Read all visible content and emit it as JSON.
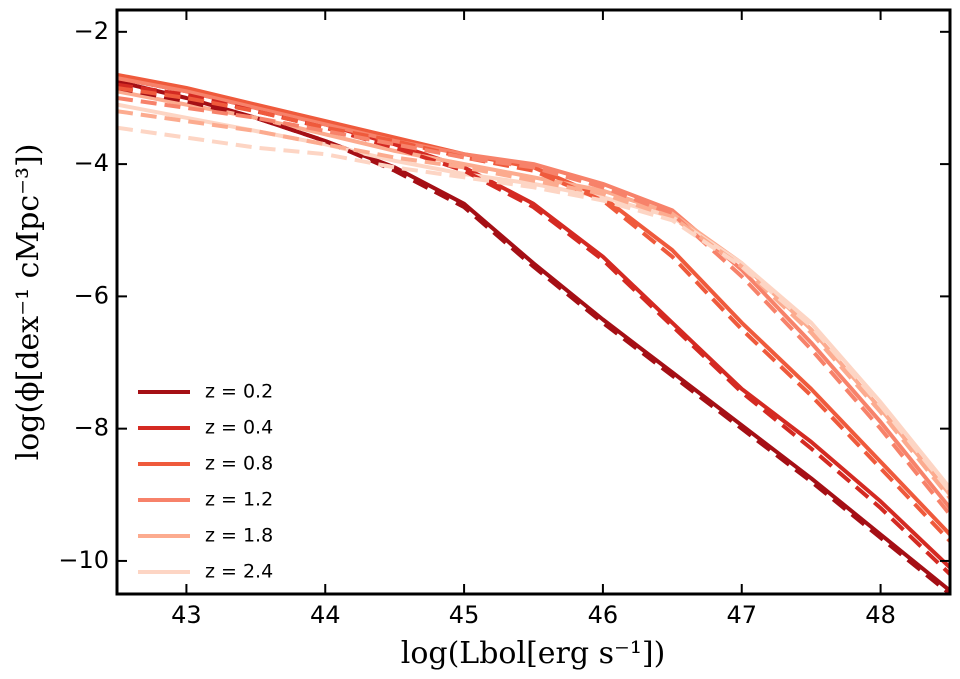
{
  "chart_data": {
    "type": "line",
    "xlabel": "log(Lbol[erg s⁻¹])",
    "ylabel": "log(ϕ[dex⁻¹ cMpc⁻³])",
    "x": [
      42.5,
      43,
      43.5,
      44,
      44.5,
      45,
      45.5,
      46,
      46.5,
      47,
      47.5,
      48,
      48.5
    ],
    "xlim": [
      42.5,
      48.5
    ],
    "xticks": [
      43,
      44,
      45,
      46,
      47,
      48
    ],
    "ylim": [
      -10.5,
      -1.67
    ],
    "yticks": [
      {
        "value": -2,
        "label": "−2"
      },
      {
        "value": -4,
        "label": "−4"
      },
      {
        "value": -6,
        "label": "−6"
      },
      {
        "value": -8,
        "label": "−8"
      },
      {
        "value": -10,
        "label": "−10"
      }
    ],
    "legend": "lower left",
    "series": [
      {
        "name": "z = 0.2",
        "color": "#a50f15",
        "values": [
          -2.75,
          -3.0,
          -3.3,
          -3.65,
          -4.05,
          -4.6,
          -5.5,
          -6.35,
          -7.15,
          -7.95,
          -8.75,
          -9.6,
          -10.45
        ]
      },
      {
        "name": "z = 0.4",
        "color": "#d42a22",
        "values": [
          -2.7,
          -2.9,
          -3.15,
          -3.4,
          -3.7,
          -4.05,
          -4.6,
          -5.4,
          -6.4,
          -7.4,
          -8.2,
          -9.1,
          -10.1
        ]
      },
      {
        "name": "z = 0.8",
        "color": "#ef5a3c",
        "values": [
          -2.65,
          -2.85,
          -3.1,
          -3.35,
          -3.6,
          -3.85,
          -4.05,
          -4.5,
          -5.3,
          -6.4,
          -7.4,
          -8.5,
          -9.6
        ]
      },
      {
        "name": "z = 1.2",
        "color": "#f7826a",
        "values": [
          -2.7,
          -2.9,
          -3.15,
          -3.4,
          -3.65,
          -3.85,
          -4.0,
          -4.3,
          -4.7,
          -5.6,
          -6.7,
          -7.9,
          -9.2
        ]
      },
      {
        "name": "z = 1.8",
        "color": "#fcab8f",
        "values": [
          -2.9,
          -3.1,
          -3.3,
          -3.55,
          -3.8,
          -4.0,
          -4.2,
          -4.4,
          -4.75,
          -5.5,
          -6.5,
          -7.7,
          -9.0
        ]
      },
      {
        "name": "z = 2.4",
        "color": "#fdd5c4",
        "values": [
          -3.1,
          -3.3,
          -3.5,
          -3.7,
          -3.95,
          -4.15,
          -4.3,
          -4.5,
          -4.8,
          -5.5,
          -6.4,
          -7.6,
          -8.9
        ]
      },
      {
        "color": "#a50f15",
        "dash": true,
        "values": [
          -2.85,
          -3.05,
          -3.3,
          -3.65,
          -4.1,
          -4.65,
          -5.55,
          -6.4,
          -7.2,
          -8.0,
          -8.8,
          -9.65,
          -10.5
        ]
      },
      {
        "color": "#d42a22",
        "dash": true,
        "values": [
          -2.8,
          -2.95,
          -3.2,
          -3.45,
          -3.75,
          -4.1,
          -4.65,
          -5.45,
          -6.45,
          -7.45,
          -8.3,
          -9.2,
          -10.2
        ]
      },
      {
        "color": "#ef5a3c",
        "dash": true,
        "values": [
          -2.85,
          -3.0,
          -3.2,
          -3.45,
          -3.65,
          -3.9,
          -4.1,
          -4.55,
          -5.4,
          -6.5,
          -7.5,
          -8.6,
          -9.7
        ]
      },
      {
        "color": "#f7826a",
        "dash": true,
        "values": [
          -3.0,
          -3.15,
          -3.3,
          -3.5,
          -3.7,
          -3.9,
          -4.05,
          -4.35,
          -4.75,
          -5.7,
          -6.8,
          -8.0,
          -9.3
        ]
      },
      {
        "color": "#fcab8f",
        "dash": true,
        "values": [
          -3.2,
          -3.35,
          -3.5,
          -3.7,
          -3.9,
          -4.05,
          -4.25,
          -4.45,
          -4.8,
          -5.55,
          -6.55,
          -7.75,
          -9.05
        ]
      },
      {
        "color": "#fdd5c4",
        "dash": true,
        "values": [
          -3.45,
          -3.6,
          -3.75,
          -3.85,
          -4.05,
          -4.2,
          -4.35,
          -4.55,
          -4.85,
          -5.55,
          -6.45,
          -7.65,
          -8.95
        ]
      }
    ]
  }
}
